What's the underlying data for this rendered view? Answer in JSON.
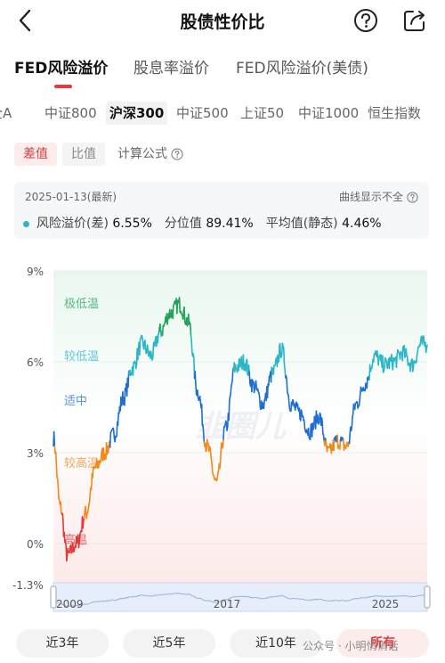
{
  "header": {
    "title": "股债性价比"
  },
  "main_tabs": [
    {
      "label": "FED风险溢价",
      "active": true
    },
    {
      "label": "股息率溢价",
      "active": false
    },
    {
      "label": "FED风险溢价(美债)",
      "active": false
    }
  ],
  "index_tabs": [
    {
      "label": "全A",
      "active": false
    },
    {
      "label": "中证800",
      "active": false
    },
    {
      "label": "沪深300",
      "active": true
    },
    {
      "label": "中证500",
      "active": false
    },
    {
      "label": "上证50",
      "active": false
    },
    {
      "label": "中证1000",
      "active": false
    },
    {
      "label": "恒生指数",
      "active": false
    }
  ],
  "modes": {
    "diff_label": "差值",
    "ratio_label": "比值",
    "formula_label": "计算公式"
  },
  "card": {
    "date": "2025-01-13(最新)",
    "curve_label": "曲线显示不全",
    "series_label": "风险溢价(差)",
    "series_value": "6.55%",
    "percentile_label": "分位值",
    "percentile_value": "89.41%",
    "avg_label": "平均值(静态)",
    "avg_value": "4.46%"
  },
  "chart_data": {
    "type": "line",
    "y_ticks": [
      "9%",
      "6%",
      "3%",
      "0%",
      "-1.3%"
    ],
    "ylim": [
      -1.3,
      9
    ],
    "zones": [
      {
        "label": "极低温",
        "color": "#22a35a"
      },
      {
        "label": "较低温",
        "color": "#2bb6c8"
      },
      {
        "label": "适中",
        "color": "#1f6fd1"
      },
      {
        "label": "较高温",
        "color": "#f08a1c"
      },
      {
        "label": "高温",
        "color": "#e03a3a"
      }
    ],
    "navigator_labels": [
      "2009",
      "2017",
      "2025"
    ],
    "watermark": "韭圈儿",
    "series": [
      {
        "x": [
          2009.0,
          2009.3,
          2009.6,
          2010.0,
          2010.4,
          2010.8,
          2011.2,
          2011.6,
          2012.0,
          2012.4,
          2012.8,
          2013.2,
          2013.6,
          2014.0,
          2014.4,
          2014.8,
          2015.2,
          2015.6,
          2016.0,
          2016.4,
          2016.8,
          2017.2,
          2017.6,
          2018.0,
          2018.4,
          2018.8,
          2019.2,
          2019.6,
          2020.0,
          2020.4,
          2020.8,
          2021.2,
          2021.6,
          2022.0,
          2022.4,
          2022.8,
          2023.2,
          2023.6,
          2024.0,
          2024.4,
          2024.8,
          2025.05
        ],
        "values": [
          3.5,
          1.2,
          -0.4,
          0.0,
          1.0,
          2.5,
          3.0,
          3.6,
          4.8,
          5.8,
          6.6,
          6.2,
          7.0,
          7.6,
          7.9,
          7.3,
          5.0,
          3.2,
          2.0,
          3.8,
          5.8,
          6.0,
          5.2,
          4.6,
          5.6,
          6.4,
          4.6,
          4.3,
          3.7,
          4.2,
          3.0,
          3.4,
          3.2,
          4.6,
          5.3,
          6.2,
          5.9,
          6.0,
          6.3,
          5.9,
          6.6,
          6.55
        ]
      }
    ]
  },
  "range_buttons": [
    {
      "label": "近3年",
      "active": false
    },
    {
      "label": "近5年",
      "active": false
    },
    {
      "label": "近10年",
      "active": false
    },
    {
      "label": "所有",
      "active": true
    }
  ],
  "footer": {
    "watermark_text": "公众号 · 小明悄悄话"
  }
}
